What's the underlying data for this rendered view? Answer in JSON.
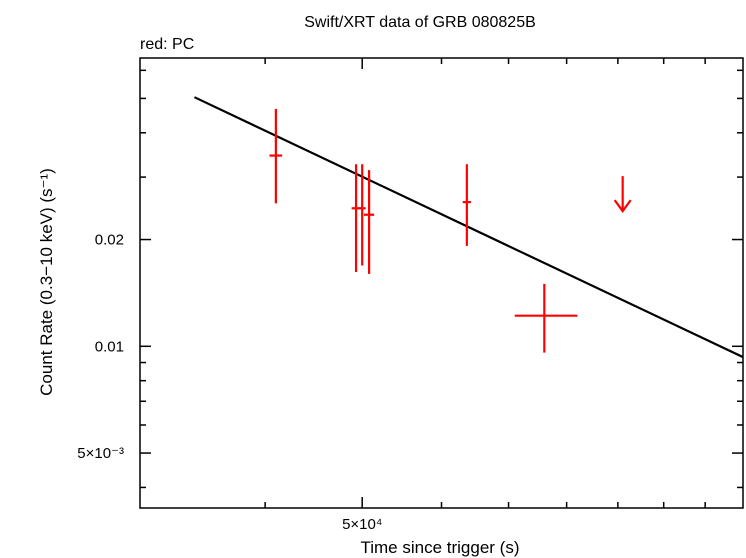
{
  "chart_data": {
    "type": "scatter",
    "title": "Swift/XRT data of GRB 080825B",
    "subtitle": "red: PC",
    "xlabel": "Time since trigger (s)",
    "ylabel": "Count Rate (0.3−10 keV) (s⁻¹)",
    "x_scale": "log",
    "y_scale": "log",
    "xlim": [
      30000,
      120000
    ],
    "ylim": [
      0.0035,
      0.065
    ],
    "x_ticks": [
      {
        "value": 50000,
        "label": "5×10⁴"
      }
    ],
    "y_ticks": [
      {
        "value": 0.02,
        "label": "0.02"
      },
      {
        "value": 0.01,
        "label": "0.01"
      },
      {
        "value": 0.005,
        "label": "5×10⁻³"
      }
    ],
    "series": [
      {
        "color": "#ff0000",
        "points": [
          {
            "x": 41000,
            "y": 0.0345,
            "x_lo": 40400,
            "x_hi": 41600,
            "y_lo": 0.0253,
            "y_hi": 0.0467
          },
          {
            "x": 49300,
            "y": 0.0245,
            "x_lo": 48800,
            "x_hi": 49800,
            "y_lo": 0.0162,
            "y_hi": 0.0326
          },
          {
            "x": 50000,
            "y": 0.0245,
            "x_lo": 49600,
            "x_hi": 50400,
            "y_lo": 0.0169,
            "y_hi": 0.0326
          },
          {
            "x": 50800,
            "y": 0.0235,
            "x_lo": 50200,
            "x_hi": 51400,
            "y_lo": 0.016,
            "y_hi": 0.0314
          },
          {
            "x": 63600,
            "y": 0.0255,
            "x_lo": 63000,
            "x_hi": 64200,
            "y_lo": 0.0192,
            "y_hi": 0.0326
          },
          {
            "x": 76000,
            "y": 0.0122,
            "x_lo": 71000,
            "x_hi": 82000,
            "y_lo": 0.0096,
            "y_hi": 0.015
          }
        ],
        "upper_limits": [
          {
            "x": 91000,
            "y": 0.0255
          }
        ]
      }
    ],
    "model": {
      "color": "#000000",
      "x": [
        34000,
        120000
      ],
      "y": [
        0.0504,
        0.00932
      ]
    },
    "grid": false,
    "legend": "none"
  }
}
